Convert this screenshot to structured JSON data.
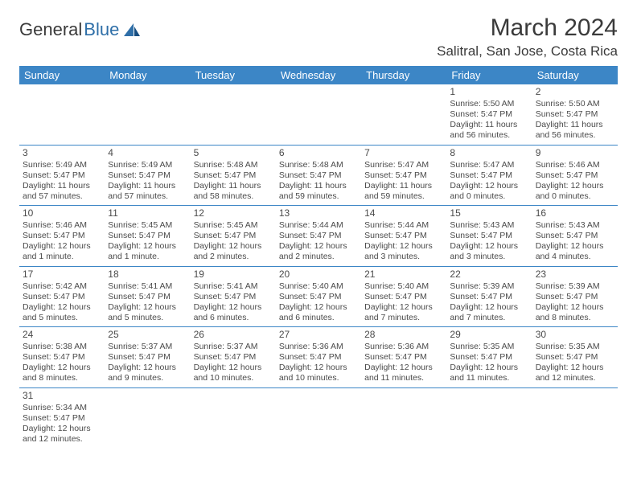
{
  "logo": {
    "word1": "General",
    "word2": "Blue"
  },
  "title": "March 2024",
  "location": "Salitral, San Jose, Costa Rica",
  "colors": {
    "header_bg": "#3c86c6",
    "header_text": "#ffffff",
    "text": "#4a4a4a",
    "row_border": "#3c86c6"
  },
  "day_headers": [
    "Sunday",
    "Monday",
    "Tuesday",
    "Wednesday",
    "Thursday",
    "Friday",
    "Saturday"
  ],
  "weeks": [
    [
      null,
      null,
      null,
      null,
      null,
      {
        "n": "1",
        "sr": "5:50 AM",
        "ss": "5:47 PM",
        "dl": "11 hours and 56 minutes."
      },
      {
        "n": "2",
        "sr": "5:50 AM",
        "ss": "5:47 PM",
        "dl": "11 hours and 56 minutes."
      }
    ],
    [
      {
        "n": "3",
        "sr": "5:49 AM",
        "ss": "5:47 PM",
        "dl": "11 hours and 57 minutes."
      },
      {
        "n": "4",
        "sr": "5:49 AM",
        "ss": "5:47 PM",
        "dl": "11 hours and 57 minutes."
      },
      {
        "n": "5",
        "sr": "5:48 AM",
        "ss": "5:47 PM",
        "dl": "11 hours and 58 minutes."
      },
      {
        "n": "6",
        "sr": "5:48 AM",
        "ss": "5:47 PM",
        "dl": "11 hours and 59 minutes."
      },
      {
        "n": "7",
        "sr": "5:47 AM",
        "ss": "5:47 PM",
        "dl": "11 hours and 59 minutes."
      },
      {
        "n": "8",
        "sr": "5:47 AM",
        "ss": "5:47 PM",
        "dl": "12 hours and 0 minutes."
      },
      {
        "n": "9",
        "sr": "5:46 AM",
        "ss": "5:47 PM",
        "dl": "12 hours and 0 minutes."
      }
    ],
    [
      {
        "n": "10",
        "sr": "5:46 AM",
        "ss": "5:47 PM",
        "dl": "12 hours and 1 minute."
      },
      {
        "n": "11",
        "sr": "5:45 AM",
        "ss": "5:47 PM",
        "dl": "12 hours and 1 minute."
      },
      {
        "n": "12",
        "sr": "5:45 AM",
        "ss": "5:47 PM",
        "dl": "12 hours and 2 minutes."
      },
      {
        "n": "13",
        "sr": "5:44 AM",
        "ss": "5:47 PM",
        "dl": "12 hours and 2 minutes."
      },
      {
        "n": "14",
        "sr": "5:44 AM",
        "ss": "5:47 PM",
        "dl": "12 hours and 3 minutes."
      },
      {
        "n": "15",
        "sr": "5:43 AM",
        "ss": "5:47 PM",
        "dl": "12 hours and 3 minutes."
      },
      {
        "n": "16",
        "sr": "5:43 AM",
        "ss": "5:47 PM",
        "dl": "12 hours and 4 minutes."
      }
    ],
    [
      {
        "n": "17",
        "sr": "5:42 AM",
        "ss": "5:47 PM",
        "dl": "12 hours and 5 minutes."
      },
      {
        "n": "18",
        "sr": "5:41 AM",
        "ss": "5:47 PM",
        "dl": "12 hours and 5 minutes."
      },
      {
        "n": "19",
        "sr": "5:41 AM",
        "ss": "5:47 PM",
        "dl": "12 hours and 6 minutes."
      },
      {
        "n": "20",
        "sr": "5:40 AM",
        "ss": "5:47 PM",
        "dl": "12 hours and 6 minutes."
      },
      {
        "n": "21",
        "sr": "5:40 AM",
        "ss": "5:47 PM",
        "dl": "12 hours and 7 minutes."
      },
      {
        "n": "22",
        "sr": "5:39 AM",
        "ss": "5:47 PM",
        "dl": "12 hours and 7 minutes."
      },
      {
        "n": "23",
        "sr": "5:39 AM",
        "ss": "5:47 PM",
        "dl": "12 hours and 8 minutes."
      }
    ],
    [
      {
        "n": "24",
        "sr": "5:38 AM",
        "ss": "5:47 PM",
        "dl": "12 hours and 8 minutes."
      },
      {
        "n": "25",
        "sr": "5:37 AM",
        "ss": "5:47 PM",
        "dl": "12 hours and 9 minutes."
      },
      {
        "n": "26",
        "sr": "5:37 AM",
        "ss": "5:47 PM",
        "dl": "12 hours and 10 minutes."
      },
      {
        "n": "27",
        "sr": "5:36 AM",
        "ss": "5:47 PM",
        "dl": "12 hours and 10 minutes."
      },
      {
        "n": "28",
        "sr": "5:36 AM",
        "ss": "5:47 PM",
        "dl": "12 hours and 11 minutes."
      },
      {
        "n": "29",
        "sr": "5:35 AM",
        "ss": "5:47 PM",
        "dl": "12 hours and 11 minutes."
      },
      {
        "n": "30",
        "sr": "5:35 AM",
        "ss": "5:47 PM",
        "dl": "12 hours and 12 minutes."
      }
    ],
    [
      {
        "n": "31",
        "sr": "5:34 AM",
        "ss": "5:47 PM",
        "dl": "12 hours and 12 minutes."
      },
      null,
      null,
      null,
      null,
      null,
      null
    ]
  ],
  "labels": {
    "sunrise": "Sunrise:",
    "sunset": "Sunset:",
    "daylight": "Daylight:"
  }
}
